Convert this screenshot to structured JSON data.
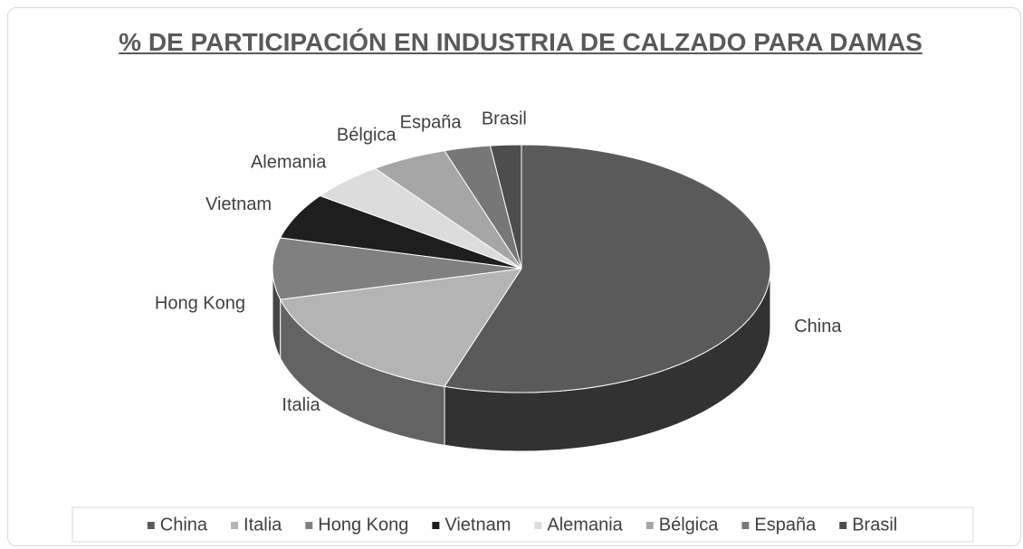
{
  "chart_data": {
    "type": "pie3d",
    "title": "% DE PARTICIPACIÓN EN INDUSTRIA DE CALZADO PARA DAMAS",
    "categories": [
      "China",
      "Italia",
      "Hong Kong",
      "Vietnam",
      "Alemania",
      "Bélgica",
      "España",
      "Brasil"
    ],
    "values": [
      55,
      16,
      8,
      6,
      5,
      5,
      3,
      2
    ],
    "colors": [
      "#5a5a5a",
      "#b4b4b4",
      "#808080",
      "#1e1e1e",
      "#dcdcdc",
      "#a6a6a6",
      "#777777",
      "#4d4d4d"
    ],
    "legend": "bottom"
  }
}
